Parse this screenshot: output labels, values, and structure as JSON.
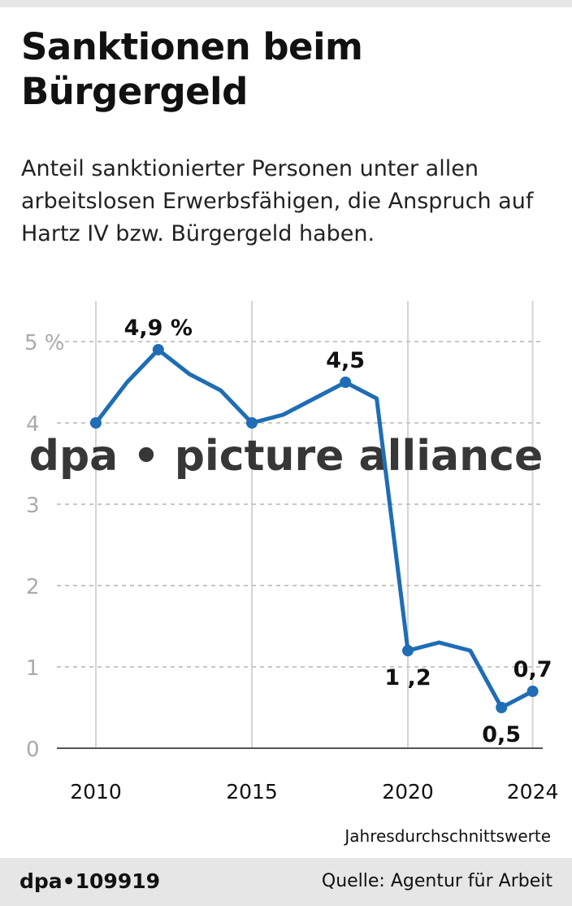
{
  "title": "Sanktionen beim Bürgergeld",
  "subtitle": "Anteil sanktionierter Personen unter allen arbeitslosen Erwerbsfähigen, die Anspruch auf Hartz IV bzw. Bürgergeld haben.",
  "note": "Jahresdurchschnittswerte",
  "footer": {
    "id": "dpa•109919",
    "source": "Quelle: Agentur für Arbeit"
  },
  "watermark": "dpa • picture alliance",
  "colors": {
    "line": "#1f6db4",
    "grid": "#c8c8c8",
    "tick": "#aaaaaa"
  },
  "chart_data": {
    "type": "line",
    "title": "Sanktionen beim Bürgergeld",
    "x": [
      2010,
      2011,
      2012,
      2013,
      2014,
      2015,
      2016,
      2017,
      2018,
      2019,
      2020,
      2021,
      2022,
      2023,
      2024
    ],
    "values": [
      4.0,
      4.5,
      4.9,
      4.6,
      4.4,
      4.0,
      4.1,
      4.3,
      4.5,
      4.3,
      1.2,
      1.3,
      1.2,
      0.5,
      0.7
    ],
    "markers": [
      2010,
      2012,
      2015,
      2018,
      2020,
      2023,
      2024
    ],
    "ylim": [
      0,
      5
    ],
    "yticks": [
      {
        "v": 0,
        "label": "0"
      },
      {
        "v": 1,
        "label": "1"
      },
      {
        "v": 2,
        "label": "2"
      },
      {
        "v": 3,
        "label": "3"
      },
      {
        "v": 4,
        "label": "4"
      },
      {
        "v": 5,
        "label": "5 %"
      }
    ],
    "xticks": [
      {
        "v": 2010,
        "label": "2010"
      },
      {
        "v": 2015,
        "label": "2015"
      },
      {
        "v": 2020,
        "label": "2020"
      },
      {
        "v": 2024,
        "label": "2024"
      }
    ],
    "labels": [
      {
        "x": 2012,
        "y": 4.9,
        "text": "4,9 %",
        "pos": "above"
      },
      {
        "x": 2018,
        "y": 4.5,
        "text": "4,5",
        "pos": "above"
      },
      {
        "x": 2020,
        "y": 1.2,
        "text": "1 ,2",
        "pos": "below"
      },
      {
        "x": 2023,
        "y": 0.5,
        "text": "0,5",
        "pos": "below"
      },
      {
        "x": 2024,
        "y": 0.7,
        "text": "0,7",
        "pos": "above"
      }
    ],
    "grid": true
  }
}
